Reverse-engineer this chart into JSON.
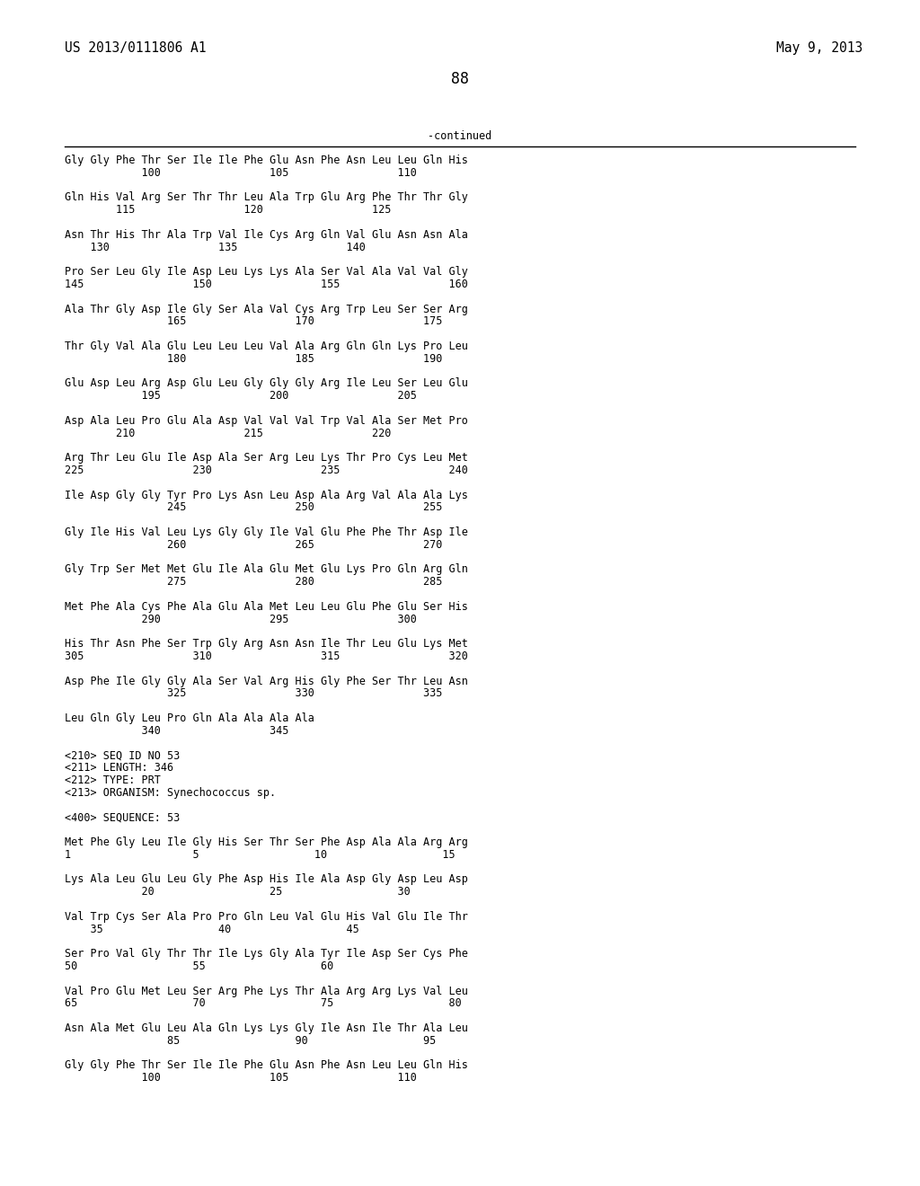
{
  "header_left": "US 2013/0111806 A1",
  "header_right": "May 9, 2013",
  "page_number": "88",
  "continued_label": "-continued",
  "background_color": "#ffffff",
  "text_color": "#000000",
  "font_size": 8.5,
  "header_font_size": 10.5,
  "page_num_font_size": 12,
  "content_lines": [
    "Gly Gly Phe Thr Ser Ile Ile Phe Glu Asn Phe Asn Leu Leu Gln His",
    "            100                 105                 110",
    "",
    "Gln His Val Arg Ser Thr Thr Leu Ala Trp Glu Arg Phe Thr Thr Gly",
    "        115                 120                 125",
    "",
    "Asn Thr His Thr Ala Trp Val Ile Cys Arg Gln Val Glu Asn Asn Ala",
    "    130                 135                 140",
    "",
    "Pro Ser Leu Gly Ile Asp Leu Lys Lys Ala Ser Val Ala Val Val Gly",
    "145                 150                 155                 160",
    "",
    "Ala Thr Gly Asp Ile Gly Ser Ala Val Cys Arg Trp Leu Ser Ser Arg",
    "                165                 170                 175",
    "",
    "Thr Gly Val Ala Glu Leu Leu Leu Val Ala Arg Gln Gln Lys Pro Leu",
    "                180                 185                 190",
    "",
    "Glu Asp Leu Arg Asp Glu Leu Gly Gly Gly Arg Ile Leu Ser Leu Glu",
    "            195                 200                 205",
    "",
    "Asp Ala Leu Pro Glu Ala Asp Val Val Val Trp Val Ala Ser Met Pro",
    "        210                 215                 220",
    "",
    "Arg Thr Leu Glu Ile Asp Ala Ser Arg Leu Lys Thr Pro Cys Leu Met",
    "225                 230                 235                 240",
    "",
    "Ile Asp Gly Gly Tyr Pro Lys Asn Leu Asp Ala Arg Val Ala Ala Lys",
    "                245                 250                 255",
    "",
    "Gly Ile His Val Leu Lys Gly Gly Ile Val Glu Phe Phe Thr Asp Ile",
    "                260                 265                 270",
    "",
    "Gly Trp Ser Met Met Glu Ile Ala Glu Met Glu Lys Pro Gln Arg Gln",
    "                275                 280                 285",
    "",
    "Met Phe Ala Cys Phe Ala Glu Ala Met Leu Leu Glu Phe Glu Ser His",
    "            290                 295                 300",
    "",
    "His Thr Asn Phe Ser Trp Gly Arg Asn Asn Ile Thr Leu Glu Lys Met",
    "305                 310                 315                 320",
    "",
    "Asp Phe Ile Gly Gly Ala Ser Val Arg His Gly Phe Ser Thr Leu Asn",
    "                325                 330                 335",
    "",
    "Leu Gln Gly Leu Pro Gln Ala Ala Ala Ala",
    "            340                 345",
    "",
    "<210> SEQ ID NO 53",
    "<211> LENGTH: 346",
    "<212> TYPE: PRT",
    "<213> ORGANISM: Synechococcus sp.",
    "",
    "<400> SEQUENCE: 53",
    "",
    "Met Phe Gly Leu Ile Gly His Ser Thr Ser Phe Asp Ala Ala Arg Arg",
    "1                   5                  10                  15",
    "",
    "Lys Ala Leu Glu Leu Gly Phe Asp His Ile Ala Asp Gly Asp Leu Asp",
    "            20                  25                  30",
    "",
    "Val Trp Cys Ser Ala Pro Pro Gln Leu Val Glu His Val Glu Ile Thr",
    "    35                  40                  45",
    "",
    "Ser Pro Val Gly Thr Thr Ile Lys Gly Ala Tyr Ile Asp Ser Cys Phe",
    "50                  55                  60",
    "",
    "Val Pro Glu Met Leu Ser Arg Phe Lys Thr Ala Arg Arg Lys Val Leu",
    "65                  70                  75                  80",
    "",
    "Asn Ala Met Glu Leu Ala Gln Lys Lys Gly Ile Asn Ile Thr Ala Leu",
    "                85                  90                  95",
    "",
    "Gly Gly Phe Thr Ser Ile Ile Phe Glu Asn Phe Asn Leu Leu Gln His",
    "            100                 105                 110"
  ]
}
